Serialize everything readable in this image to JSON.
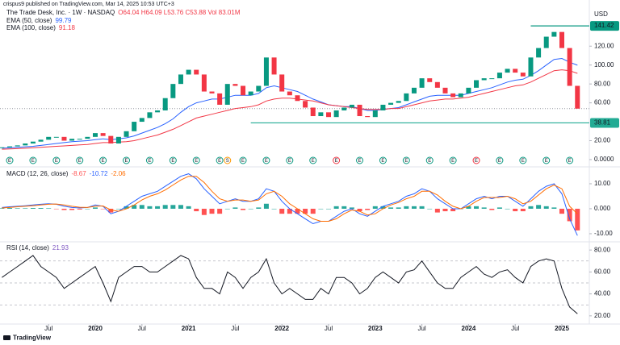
{
  "header": {
    "published": "crispus9 published on TradingView.com, Mar 14, 2025 10:53 UTC+3"
  },
  "footer": {
    "brand": "TradingView"
  },
  "chart_data": [
    {
      "type": "candlestick",
      "title": "The Trade Desk, Inc. · 1W · NASDAQ",
      "subtitle": "O64.04 H64.09 L53.76 C53.88 Vol 83.01M",
      "y_label": "USD",
      "x": [
        "2019-01",
        "2019-02",
        "2019-03",
        "2019-04",
        "2019-05",
        "2019-06",
        "2019-07",
        "2019-08",
        "2019-09",
        "2019-10",
        "2019-11",
        "2019-12",
        "2020-01",
        "2020-02",
        "2020-03",
        "2020-04",
        "2020-05",
        "2020-06",
        "2020-07",
        "2020-08",
        "2020-09",
        "2020-10",
        "2020-11",
        "2020-12",
        "2021-01",
        "2021-02",
        "2021-03",
        "2021-04",
        "2021-05",
        "2021-06",
        "2021-07",
        "2021-08",
        "2021-09",
        "2021-10",
        "2021-11",
        "2021-12",
        "2022-01",
        "2022-02",
        "2022-03",
        "2022-04",
        "2022-05",
        "2022-06",
        "2022-07",
        "2022-08",
        "2022-09",
        "2022-10",
        "2022-11",
        "2022-12",
        "2023-01",
        "2023-02",
        "2023-03",
        "2023-04",
        "2023-05",
        "2023-06",
        "2023-07",
        "2023-08",
        "2023-09",
        "2023-10",
        "2023-11",
        "2023-12",
        "2024-01",
        "2024-02",
        "2024-03",
        "2024-04",
        "2024-05",
        "2024-06",
        "2024-07",
        "2024-08",
        "2024-09",
        "2024-10",
        "2024-11",
        "2024-12",
        "2025-01",
        "2025-02",
        "2025-03"
      ],
      "close": {
        "up_color": "#089981",
        "down_color": "#f23645",
        "values": [
          13,
          14,
          15,
          17,
          19,
          21,
          24,
          24,
          20,
          22,
          22,
          24,
          28,
          25,
          17,
          24,
          30,
          40,
          44,
          50,
          52,
          65,
          80,
          90,
          95,
          90,
          72,
          70,
          58,
          80,
          78,
          68,
          72,
          78,
          108,
          90,
          72,
          68,
          62,
          55,
          46,
          50,
          45,
          52,
          55,
          58,
          46,
          45,
          52,
          58,
          60,
          62,
          70,
          76,
          86,
          82,
          76,
          70,
          66,
          70,
          76,
          84,
          86,
          86,
          92,
          96,
          92,
          88,
          108,
          118,
          130,
          135,
          118,
          78,
          53.88
        ]
      },
      "series": [
        {
          "name": "EMA (50, close)",
          "color": "#2962ff",
          "values": [
            12,
            12.5,
            13,
            13.5,
            14,
            15,
            16,
            17,
            18,
            19,
            19.5,
            20,
            21,
            22,
            21,
            22,
            23,
            25,
            28,
            31,
            34,
            38,
            43,
            50,
            56,
            60,
            62,
            64,
            64,
            66,
            68,
            68,
            68,
            70,
            76,
            78,
            76,
            74,
            72,
            68,
            64,
            61,
            58,
            57,
            56,
            56,
            54,
            52,
            52,
            53,
            54,
            55,
            58,
            61,
            64,
            67,
            68,
            68,
            68,
            68,
            70,
            72,
            74,
            76,
            79,
            82,
            84,
            85,
            89,
            94,
            100,
            106,
            107,
            103,
            99.79
          ]
        },
        {
          "name": "EMA (100, close)",
          "color": "#f23645",
          "values": [
            11,
            11.3,
            11.6,
            12,
            12.4,
            13,
            13.5,
            14,
            14.5,
            15,
            15.5,
            16,
            17,
            18,
            18,
            18.5,
            19,
            20,
            22,
            24,
            26,
            29,
            32,
            36,
            40,
            44,
            46,
            48,
            50,
            52,
            54,
            55,
            56,
            58,
            62,
            64,
            65,
            65,
            64,
            63,
            62,
            60,
            58,
            57,
            56,
            55,
            54,
            53,
            53,
            53,
            54,
            54,
            56,
            58,
            60,
            62,
            63,
            64,
            64,
            65,
            66,
            68,
            70,
            72,
            74,
            76,
            78,
            79,
            82,
            86,
            90,
            94,
            95,
            94,
            91.18
          ]
        }
      ],
      "hlines": [
        {
          "value": 141.42,
          "start": "2024-09",
          "color": "#089981"
        },
        {
          "value": 38.81,
          "start": "2021-09",
          "color": "#22ab94"
        }
      ],
      "events": [
        {
          "x": "2019-02",
          "label": "E",
          "color": "#089981"
        },
        {
          "x": "2019-05",
          "label": "E",
          "color": "#089981"
        },
        {
          "x": "2019-08",
          "label": "E",
          "color": "#089981"
        },
        {
          "x": "2019-11",
          "label": "E",
          "color": "#089981"
        },
        {
          "x": "2020-02",
          "label": "E",
          "color": "#089981"
        },
        {
          "x": "2020-05",
          "label": "E",
          "color": "#089981"
        },
        {
          "x": "2020-08",
          "label": "E",
          "color": "#089981"
        },
        {
          "x": "2020-11",
          "label": "E",
          "color": "#089981"
        },
        {
          "x": "2021-02",
          "label": "E",
          "color": "#089981"
        },
        {
          "x": "2021-05",
          "label": "E",
          "color": "#089981"
        },
        {
          "x": "2021-06",
          "label": "S",
          "color": "#ff9800"
        },
        {
          "x": "2021-08",
          "label": "E",
          "color": "#089981"
        },
        {
          "x": "2021-11",
          "label": "E",
          "color": "#089981"
        },
        {
          "x": "2022-02",
          "label": "E",
          "color": "#089981"
        },
        {
          "x": "2022-05",
          "label": "E",
          "color": "#089981"
        },
        {
          "x": "2022-08",
          "label": "E",
          "color": "#f23645"
        },
        {
          "x": "2022-11",
          "label": "E",
          "color": "#089981"
        },
        {
          "x": "2023-02",
          "label": "E",
          "color": "#089981"
        },
        {
          "x": "2023-05",
          "label": "E",
          "color": "#089981"
        },
        {
          "x": "2023-08",
          "label": "E",
          "color": "#089981"
        },
        {
          "x": "2023-11",
          "label": "E",
          "color": "#089981"
        },
        {
          "x": "2024-02",
          "label": "E",
          "color": "#f23645"
        },
        {
          "x": "2024-05",
          "label": "E",
          "color": "#089981"
        },
        {
          "x": "2024-08",
          "label": "E",
          "color": "#089981"
        },
        {
          "x": "2024-11",
          "label": "E",
          "color": "#089981"
        },
        {
          "x": "2025-02",
          "label": "E",
          "color": "#089981"
        }
      ],
      "ylim": [
        -6,
        162
      ],
      "yticks": [
        {
          "value": 0,
          "label": "0.0000"
        },
        {
          "value": 20,
          "label": "20.00"
        },
        {
          "value": 60,
          "label": "60.00"
        },
        {
          "value": 80,
          "label": "80.00"
        },
        {
          "value": 100,
          "label": "100.00"
        },
        {
          "value": 120,
          "label": "120.00"
        }
      ],
      "xticks": [
        {
          "value": "2019-07",
          "label": "Jul"
        },
        {
          "value": "2020-01",
          "label": "2020"
        },
        {
          "value": "2020-07",
          "label": "Jul"
        },
        {
          "value": "2021-01",
          "label": "2021"
        },
        {
          "value": "2021-07",
          "label": "Jul"
        },
        {
          "value": "2022-01",
          "label": "2022"
        },
        {
          "value": "2022-07",
          "label": "Jul"
        },
        {
          "value": "2023-01",
          "label": "2023"
        },
        {
          "value": "2023-07",
          "label": "Jul"
        },
        {
          "value": "2024-01",
          "label": "2024"
        },
        {
          "value": "2024-07",
          "label": "Jul"
        },
        {
          "value": "2025-01",
          "label": "2025"
        }
      ]
    },
    {
      "type": "macd",
      "title": "MACD (12, 26, close)",
      "histogram": {
        "up_color": "#26a69a",
        "down_color": "#ff5252",
        "values": [
          0.2,
          0.3,
          0.2,
          0.2,
          0.3,
          0.3,
          0.2,
          -0.1,
          -0.5,
          -0.5,
          -0.3,
          0,
          0.5,
          -0.1,
          -1.5,
          0,
          1,
          1.5,
          1.5,
          1,
          1,
          1.5,
          1.5,
          1.5,
          1,
          -1,
          -2.5,
          -2,
          -2,
          0,
          0.5,
          -0.5,
          0,
          0.5,
          2,
          0,
          -2,
          -2,
          -2,
          -2,
          -2,
          0,
          0,
          1,
          1,
          0.5,
          -1,
          -0.5,
          1,
          1,
          0.5,
          0.5,
          1,
          1,
          1,
          0,
          -1.5,
          -1,
          -1,
          0,
          1,
          1,
          0.5,
          -0.5,
          0.5,
          0,
          -1,
          -1,
          1,
          1.5,
          1,
          0.5,
          -2,
          -5,
          -8.67
        ]
      },
      "series": [
        {
          "color": "#2962ff",
          "values": [
            0.5,
            0.8,
            1,
            1.2,
            1.5,
            1.8,
            2,
            1.8,
            1,
            0.5,
            0.3,
            0.5,
            1.5,
            1,
            -2,
            -1,
            1,
            3,
            5,
            6,
            7,
            9,
            11,
            13,
            14,
            12,
            8,
            5,
            2,
            3,
            4,
            3,
            3,
            4,
            8,
            7,
            3,
            0,
            -2,
            -4,
            -6,
            -5,
            -5,
            -3,
            -1,
            0,
            -2,
            -3,
            -1,
            1,
            2,
            3,
            5,
            6,
            8,
            7,
            4,
            2,
            0,
            0,
            2,
            4,
            5,
            4,
            5,
            5,
            3,
            1,
            4,
            7,
            9,
            10,
            6,
            -4,
            -10.72
          ]
        },
        {
          "color": "#ff6d00",
          "values": [
            0.3,
            0.5,
            0.8,
            1,
            1.2,
            1.5,
            1.8,
            1.9,
            1.5,
            1,
            0.6,
            0.5,
            1,
            1.1,
            -0.5,
            -1,
            0,
            1.5,
            3.5,
            5,
            6,
            7.5,
            9.5,
            11.5,
            13,
            13,
            10.5,
            7,
            4,
            3,
            3.5,
            3.5,
            3,
            3.5,
            6,
            7,
            5,
            2,
            0,
            -2,
            -4,
            -5,
            -5,
            -4,
            -2,
            -0.5,
            -1,
            -2.5,
            -2,
            0,
            1.5,
            2.5,
            4,
            5,
            7,
            7,
            5.5,
            3,
            1,
            0,
            1,
            3,
            4.5,
            4.5,
            4.5,
            5,
            4,
            2,
            3,
            5.5,
            8,
            9.5,
            8,
            1,
            -2.06
          ]
        }
      ],
      "ylim": [
        -12.6,
        15.8
      ],
      "yticks": [
        {
          "value": -10,
          "label": "-10.00"
        },
        {
          "value": 0,
          "label": "0.000"
        },
        {
          "value": 10,
          "label": "10.00"
        }
      ]
    },
    {
      "type": "line",
      "title": "RSI (14, close)",
      "series": [
        {
          "color": "#131722",
          "values": [
            55,
            60,
            65,
            70,
            75,
            65,
            60,
            55,
            45,
            50,
            55,
            60,
            65,
            50,
            33,
            55,
            60,
            65,
            65,
            60,
            60,
            65,
            70,
            75,
            72,
            55,
            45,
            45,
            40,
            60,
            55,
            45,
            55,
            60,
            72,
            50,
            40,
            45,
            40,
            35,
            35,
            45,
            40,
            55,
            55,
            50,
            40,
            45,
            55,
            60,
            55,
            50,
            60,
            62,
            70,
            60,
            50,
            45,
            45,
            55,
            60,
            65,
            58,
            55,
            60,
            62,
            55,
            50,
            65,
            70,
            72,
            70,
            45,
            28,
            21.93
          ]
        }
      ],
      "levels": [
        30,
        50,
        70
      ],
      "ylim": [
        14,
        86
      ],
      "yticks": [
        {
          "value": 20,
          "label": "20.00"
        },
        {
          "value": 40,
          "label": "40.00"
        },
        {
          "value": 60,
          "label": "60.00"
        },
        {
          "value": 80,
          "label": "80.00"
        }
      ]
    }
  ]
}
